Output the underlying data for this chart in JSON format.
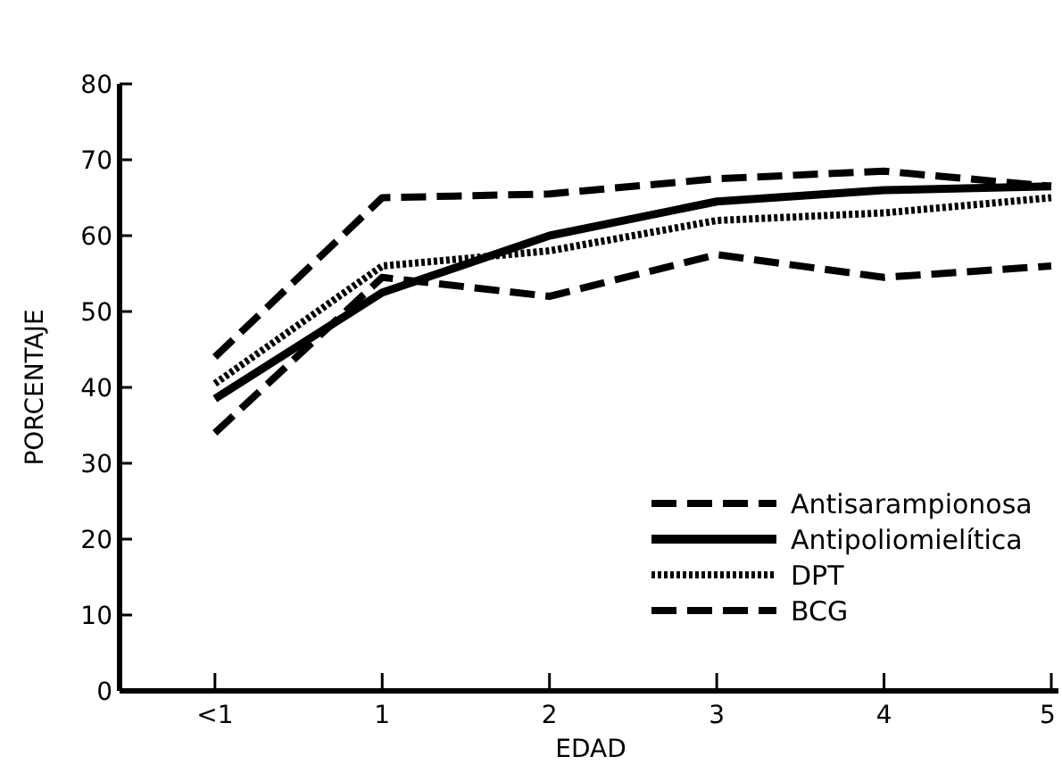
{
  "chart_data": {
    "type": "line",
    "xlabel": "EDAD",
    "ylabel": "PORCENTAJE",
    "categories": [
      "<1",
      "1",
      "2",
      "3",
      "4",
      "5"
    ],
    "ylim": [
      0,
      80
    ],
    "yticks": [
      0,
      10,
      20,
      30,
      40,
      50,
      60,
      70,
      80
    ],
    "grid": false,
    "legend": "bottom right",
    "series": [
      {
        "name": "Antisarampionosa",
        "color": "#000000",
        "line_style": "dashed",
        "values": [
          44,
          65,
          65.5,
          67.5,
          68.5,
          66.5
        ]
      },
      {
        "name": "Antipoliomielítica",
        "color": "#000000",
        "line_style": "solid",
        "values": [
          38.5,
          52.5,
          60,
          64.5,
          66,
          66.5
        ]
      },
      {
        "name": "DPT",
        "color": "#000000",
        "line_style": "dotted",
        "values": [
          40.5,
          56,
          58,
          62,
          63,
          65
        ]
      },
      {
        "name": "BCG",
        "color": "#000000",
        "line_style": "dashed",
        "values": [
          34,
          54.5,
          52,
          57.5,
          54.5,
          56
        ]
      }
    ]
  }
}
